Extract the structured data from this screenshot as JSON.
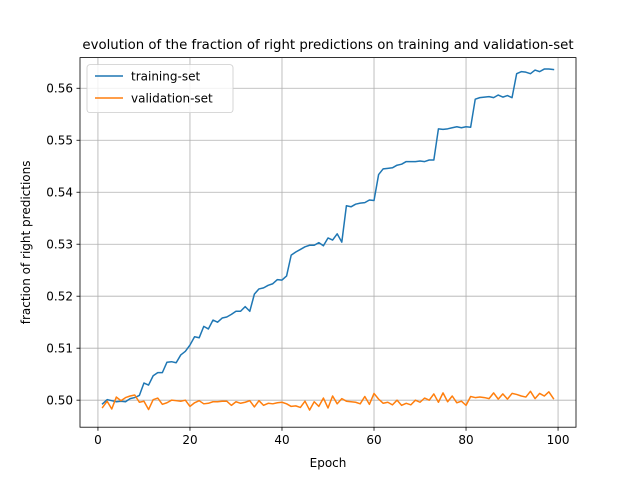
{
  "chart_data": {
    "type": "line",
    "title": "evolution of the fraction of right predictions on training and validation-set",
    "xlabel": "Epoch",
    "ylabel": "fraction of right predictions",
    "xlim": [
      -3.9,
      103.9
    ],
    "ylim": [
      0.4948,
      0.5659
    ],
    "grid": true,
    "legend_position": "top-left",
    "xticks": [
      0,
      20,
      40,
      60,
      80,
      100
    ],
    "yticks": [
      0.5,
      0.51,
      0.52,
      0.53,
      0.54,
      0.55,
      0.56
    ],
    "xtick_labels": [
      "0",
      "20",
      "40",
      "60",
      "80",
      "100"
    ],
    "ytick_labels": [
      "0.50",
      "0.51",
      "0.52",
      "0.53",
      "0.54",
      "0.55",
      "0.56"
    ],
    "x": [
      1,
      2,
      3,
      4,
      5,
      6,
      7,
      8,
      9,
      10,
      11,
      12,
      13,
      14,
      15,
      16,
      17,
      18,
      19,
      20,
      21,
      22,
      23,
      24,
      25,
      26,
      27,
      28,
      29,
      30,
      31,
      32,
      33,
      34,
      35,
      36,
      37,
      38,
      39,
      40,
      41,
      42,
      43,
      44,
      45,
      46,
      47,
      48,
      49,
      50,
      51,
      52,
      53,
      54,
      55,
      56,
      57,
      58,
      59,
      60,
      61,
      62,
      63,
      64,
      65,
      66,
      67,
      68,
      69,
      70,
      71,
      72,
      73,
      74,
      75,
      76,
      77,
      78,
      79,
      80,
      81,
      82,
      83,
      84,
      85,
      86,
      87,
      88,
      89,
      90,
      91,
      92,
      93,
      94,
      95,
      96,
      97,
      98,
      99
    ],
    "series": [
      {
        "name": "training-set",
        "color": "#1f77b4",
        "values": [
          0.4993,
          0.5001,
          0.4999,
          0.4997,
          0.4998,
          0.4997,
          0.5003,
          0.5005,
          0.5009,
          0.5033,
          0.5029,
          0.5047,
          0.5053,
          0.5053,
          0.5073,
          0.5074,
          0.5072,
          0.5087,
          0.5094,
          0.5106,
          0.5122,
          0.512,
          0.5142,
          0.5137,
          0.5154,
          0.515,
          0.5158,
          0.516,
          0.5165,
          0.5171,
          0.5171,
          0.518,
          0.5171,
          0.5204,
          0.5214,
          0.5216,
          0.5221,
          0.5224,
          0.5232,
          0.5231,
          0.5239,
          0.5279,
          0.5285,
          0.529,
          0.5295,
          0.5298,
          0.5298,
          0.5303,
          0.5297,
          0.5312,
          0.5308,
          0.532,
          0.5304,
          0.5374,
          0.5372,
          0.5377,
          0.5379,
          0.538,
          0.5385,
          0.5384,
          0.5434,
          0.5445,
          0.5446,
          0.5447,
          0.5452,
          0.5454,
          0.5459,
          0.5459,
          0.5459,
          0.546,
          0.5459,
          0.5462,
          0.5462,
          0.5522,
          0.5521,
          0.5522,
          0.5524,
          0.5526,
          0.5524,
          0.5526,
          0.5525,
          0.5579,
          0.5582,
          0.5583,
          0.5584,
          0.5582,
          0.5587,
          0.5583,
          0.5586,
          0.5582,
          0.5628,
          0.5632,
          0.5631,
          0.5628,
          0.5635,
          0.5632,
          0.5637,
          0.5637,
          0.5636
        ]
      },
      {
        "name": "validation-set",
        "color": "#ff7f0e",
        "values": [
          0.4986,
          0.4998,
          0.4983,
          0.5006,
          0.4999,
          0.5005,
          0.5008,
          0.501,
          0.4996,
          0.4998,
          0.4982,
          0.5001,
          0.5004,
          0.4992,
          0.4995,
          0.5,
          0.4999,
          0.4998,
          0.5,
          0.4988,
          0.4995,
          0.4999,
          0.4993,
          0.4994,
          0.4997,
          0.4997,
          0.4998,
          0.4998,
          0.499,
          0.4997,
          0.4994,
          0.4996,
          0.4999,
          0.4987,
          0.4999,
          0.499,
          0.4994,
          0.4993,
          0.4995,
          0.4996,
          0.4993,
          0.4988,
          0.4989,
          0.4986,
          0.4998,
          0.4981,
          0.4997,
          0.4988,
          0.5004,
          0.4985,
          0.5008,
          0.4993,
          0.5003,
          0.4998,
          0.4997,
          0.4996,
          0.4993,
          0.5007,
          0.4992,
          0.5013,
          0.5002,
          0.4994,
          0.4996,
          0.4991,
          0.5,
          0.499,
          0.4994,
          0.4991,
          0.5,
          0.4996,
          0.5004,
          0.5,
          0.5012,
          0.4996,
          0.5014,
          0.4997,
          0.5008,
          0.4995,
          0.4998,
          0.499,
          0.5007,
          0.5005,
          0.5006,
          0.5005,
          0.5003,
          0.5014,
          0.5002,
          0.5012,
          0.5002,
          0.5013,
          0.5011,
          0.5008,
          0.5006,
          0.5017,
          0.5003,
          0.5013,
          0.5008,
          0.5016,
          0.5003
        ]
      }
    ]
  }
}
